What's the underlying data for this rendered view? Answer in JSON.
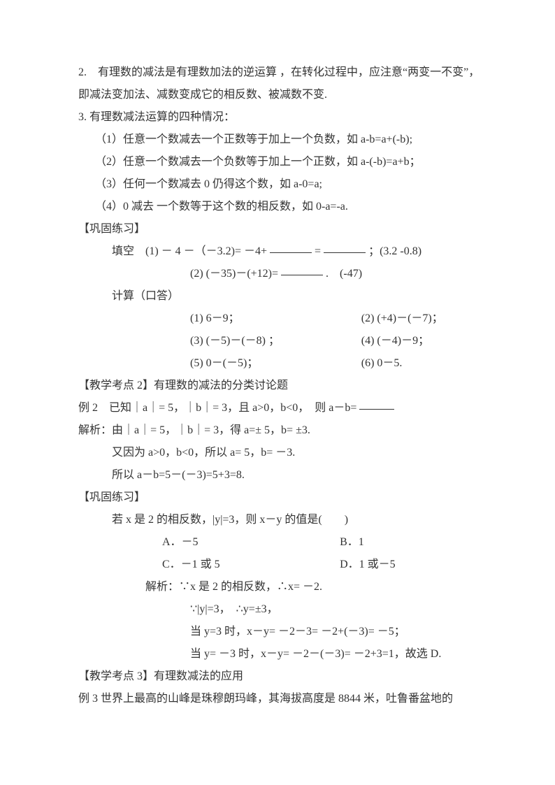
{
  "p1": "2.　有理数的减法是有理数加法的逆运算 ，在转化过程中，应注意“两变一不变”，即减法变加法、减数变成它的相反数、被减数不变.",
  "p2": "3.  有理数减法运算的四种情况：",
  "p3": "（1）任意一个数减去一个正数等于加上一个负数，如 a-b=a+(-b);",
  "p4": "（2）任意一个数减去一个负数等于加上一个正数，如 a-(-b)=a+b；",
  "p5": "（3）任何一个数减去 0 仍得这个数，如 a-0=a;",
  "p6": "（4）0 减去 一个数等于这个数的相反数，如 0-a=-a.",
  "p7": "【巩固练习】",
  "p8a": "填空　(1) － 4 －（－3.2)= －4+ ",
  "p8b": " = ",
  "p8c": " ；(3.2 -0.8)",
  "p9a": "(2) (－35)－(+12)= ",
  "p9b": " .　(-47)",
  "p10": "计算（口答）",
  "p11a": "(1) 6－9；",
  "p11b": "(2) (+4)－(－7)；",
  "p12a": "(3) (－5)－(－8) ；",
  "p12b": "(4) (－4)－9；",
  "p13a": "(5) 0－(－5)；",
  "p13b": "(6) 0－5.",
  "p14": "【教学考点 2】有理数的减法的分类讨论题",
  "p15a": " 例 2　已知｜a｜= 5，｜b｜= 3，且 a>0，b<0，　则 a－b= ",
  "p16": "解析：由｜a｜= 5，｜b｜= 3，得 a=± 5，b= ±3.",
  "p17": "又因为 a>0，b<0，所以 a= 5，b= －3.",
  "p18": "所以 a－b=5－(－3)=5+3=8.",
  "p19": "【巩固练习】",
  "p20": "若 x 是 2 的相反数，|y|=3，则 x－y 的值是(　　)",
  "p21a": "A．－5",
  "p21b": "B．1",
  "p22a": "C．－1 或 5",
  "p22b": "D．1 或－5",
  "p23": "解析：∵x 是 2 的相反数，∴x= －2.",
  "p24": "∵|y|=3，　∴y=±3，",
  "p25": "当 y=3 时，x－y= －2－3= －2+(－3)= －5；",
  "p26": "当 y= －3 时，x－y= －2－(－3)= －2+3=1，故选 D.",
  "p27": "【教学考点 3】有理数减法的应用",
  "p28": " 例 3 世界上最高的山峰是珠穆朗玛峰，其海拔高度是 8844 米，吐鲁番盆地的"
}
